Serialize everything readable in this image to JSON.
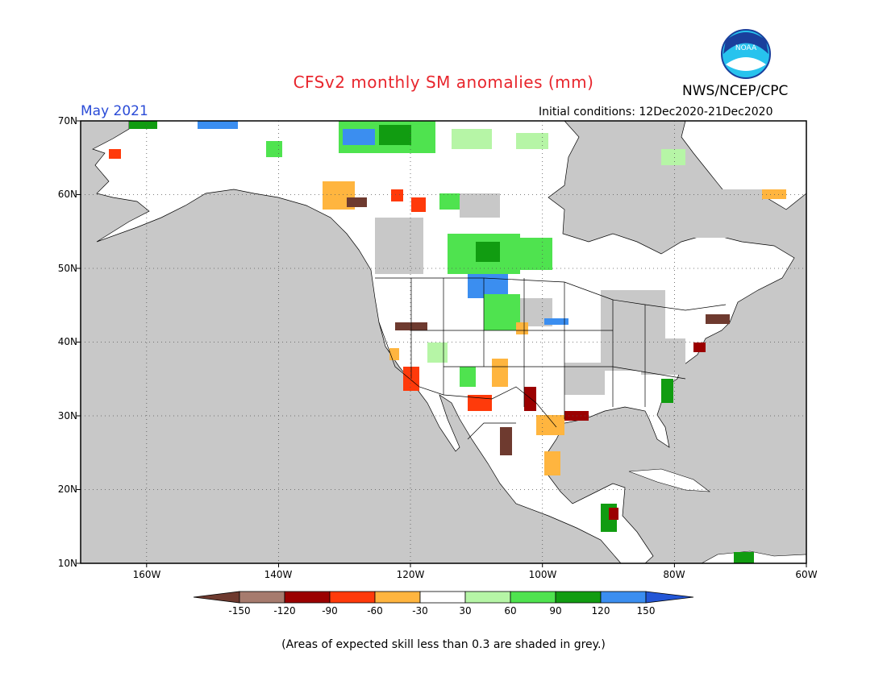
{
  "header": {
    "title": "CFSv2 monthly SM anomalies (mm)",
    "agency": "NWS/NCEP/CPC",
    "month": "May 2021",
    "initial_conditions": "Initial conditions: 12Dec2020-21Dec2020",
    "logo_text": "NOAA"
  },
  "map": {
    "lat_labels": [
      "70N",
      "60N",
      "50N",
      "40N",
      "30N",
      "20N",
      "10N"
    ],
    "lon_labels": [
      "160W",
      "140W",
      "120W",
      "100W",
      "80W",
      "60W"
    ],
    "colors": {
      "land": "#ffffff",
      "low_skill": "#c8c8c8"
    }
  },
  "colorbar": {
    "labels": [
      "-150",
      "-120",
      "-90",
      "-60",
      "-30",
      "30",
      "60",
      "90",
      "120",
      "150"
    ],
    "colors": [
      "#6e3a2f",
      "#a67b6e",
      "#9b0000",
      "#ff3a0a",
      "#ffb53f",
      "#ffffff",
      "#b6f5a6",
      "#4fe34f",
      "#119c11",
      "#3b8ef0",
      "#2356d6"
    ]
  },
  "footnote": "(Areas of expected skill less than 0.3 are shaded in grey.)"
}
